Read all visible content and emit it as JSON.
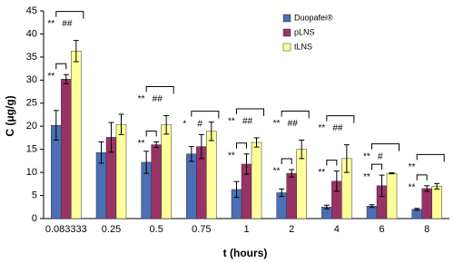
{
  "chart_data": {
    "type": "bar",
    "x_label": "t (hours)",
    "y_label": "C (μg/g)",
    "categories": [
      "0.083333",
      "0.25",
      "0.5",
      "0.75",
      "1",
      "2",
      "4",
      "6",
      "8"
    ],
    "series": [
      {
        "name": "Duopafei®",
        "color": "#4a6fb5",
        "values": [
          20.2,
          14.3,
          12.2,
          14,
          6.3,
          5.6,
          2.5,
          2.7,
          2.0
        ],
        "errors": [
          3.2,
          2.3,
          2.4,
          1.6,
          1.7,
          0.8,
          0.4,
          0.3,
          0.2
        ]
      },
      {
        "name": "pLNS",
        "color": "#993366",
        "values": [
          30.2,
          17.6,
          16,
          15.6,
          11.8,
          9.8,
          8.1,
          7.1,
          6.5
        ],
        "errors": [
          1.0,
          3.2,
          0.6,
          2.6,
          2.2,
          0.8,
          2.2,
          2.3,
          0.6
        ]
      },
      {
        "name": "tLNS",
        "color": "#ffff99",
        "values": [
          36.3,
          20.4,
          20.3,
          18.9,
          16.5,
          15,
          13,
          9.8,
          7.0
        ],
        "errors": [
          2.3,
          2.2,
          2.0,
          2.0,
          1.0,
          2.0,
          3.0,
          0.1,
          0.6
        ]
      }
    ],
    "significance_pLNS": [
      "**",
      null,
      "**",
      null,
      "**",
      "**",
      "**",
      "**",
      "**"
    ],
    "significance_tLNS": [
      [
        "**",
        "##"
      ],
      null,
      [
        "**",
        "##"
      ],
      [
        "*",
        "#"
      ],
      [
        "**",
        "##"
      ],
      [
        "**",
        "##"
      ],
      [
        "**",
        "##"
      ],
      [
        "**",
        "#"
      ],
      [
        "**"
      ]
    ],
    "ylim": [
      0,
      45
    ],
    "yticks": [
      0,
      5,
      10,
      15,
      20,
      25,
      30,
      35,
      40,
      45
    ],
    "legend": "top-right"
  }
}
